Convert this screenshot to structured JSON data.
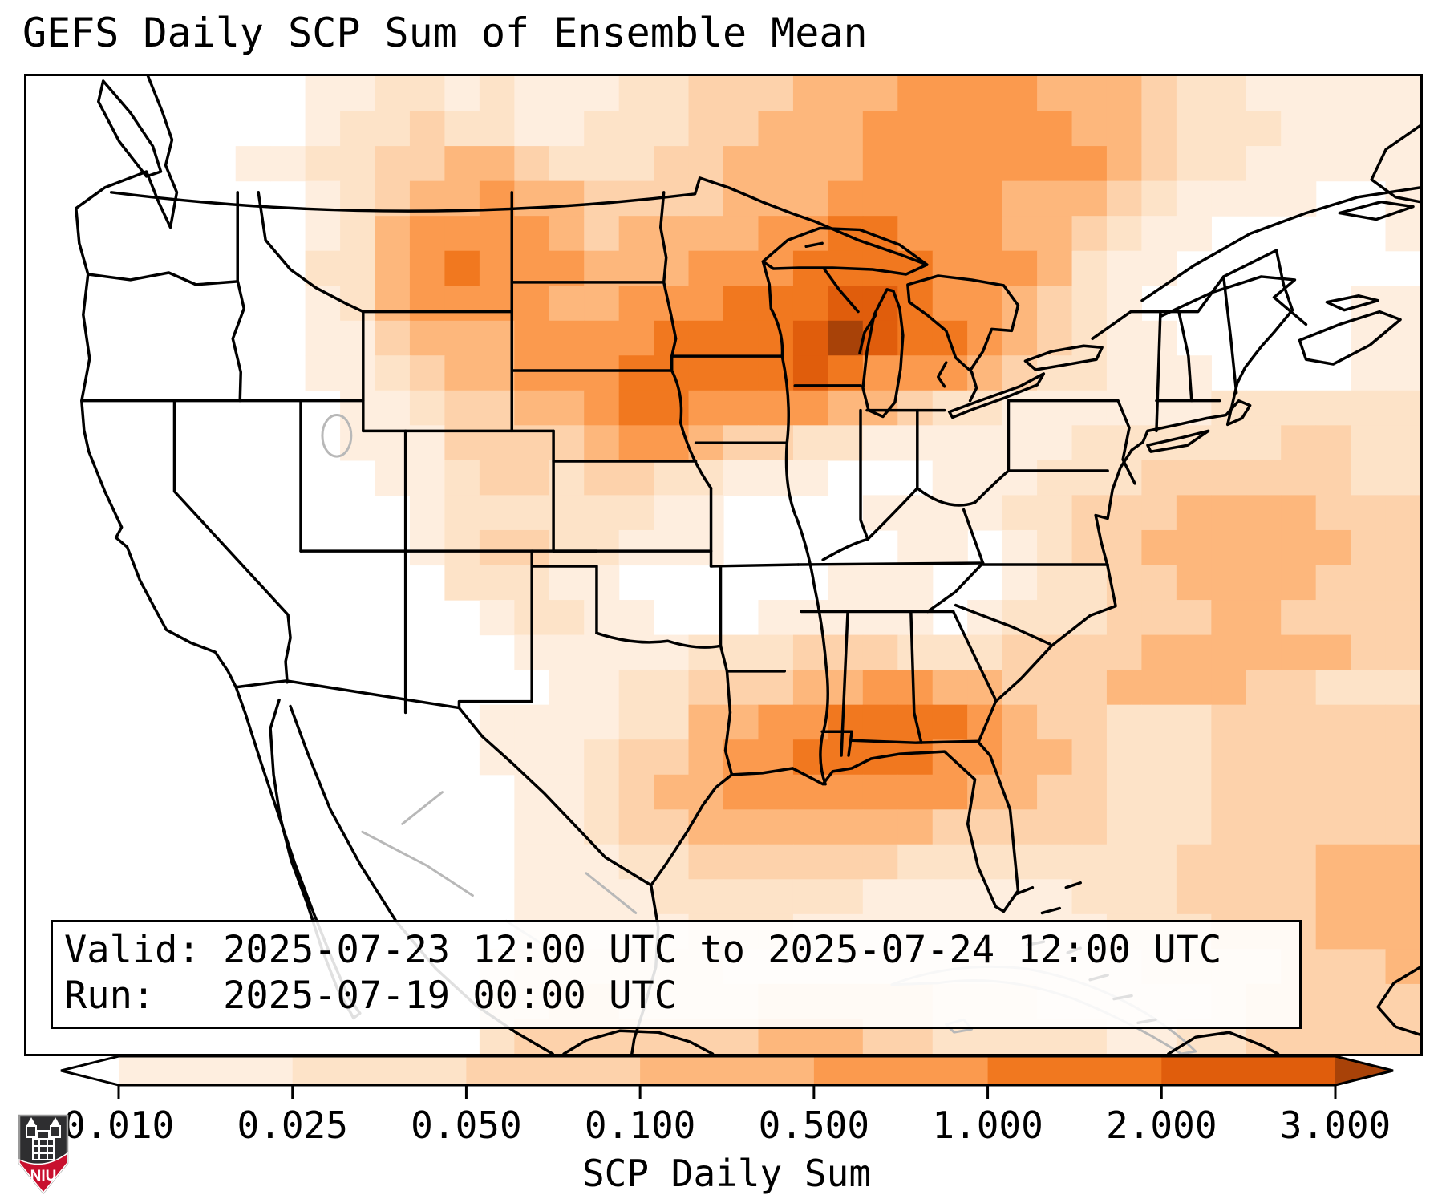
{
  "title": "GEFS Daily SCP Sum of Ensemble Mean",
  "info_box": {
    "valid_line": "Valid: 2025-07-23 12:00 UTC to 2025-07-24 12:00 UTC",
    "run_line": "Run:   2025-07-19 00:00 UTC"
  },
  "colorbar": {
    "label": "SCP Daily Sum",
    "tick_labels": [
      "0.010",
      "0.025",
      "0.050",
      "0.100",
      "0.500",
      "1.000",
      "2.000",
      "3.000"
    ],
    "boundaries": [
      0.01,
      0.025,
      0.05,
      0.1,
      0.5,
      1.0,
      2.0,
      3.0
    ],
    "segment_colors": [
      "#feeedf",
      "#fde3c8",
      "#fdd2ab",
      "#fdb77c",
      "#fb9a4e",
      "#f1781f",
      "#e05d0c"
    ],
    "under_color": "#ffffff",
    "over_color": "#a84208",
    "outline_color": "#000000"
  },
  "logo": {
    "text": "NIU",
    "red": "#c8102e",
    "dark": "#2e2e30"
  },
  "map": {
    "field_name": "SCP daily sum ensemble mean",
    "palette": [
      "#ffffff",
      "#feeedf",
      "#fde3c8",
      "#fdd2ab",
      "#fdb77c",
      "#fb9a4e",
      "#f1781f",
      "#e05d0c",
      "#a84208"
    ],
    "grid": {
      "cols": 40,
      "rows": 28,
      "legend": "each digit 0-8 indexes palette; 0=<0.01 white, 8=>3.0 darkest",
      "cells": [
        "0000000011221211122333444555544432211111",
        "0000000012232211222334445555554432221111",
        "0000001122334432223344445555555432211111",
        "0000000012344544333344455555444321111001",
        "0000000012455554344445566555443211000001",
        "0000000022456555444555666655542110000000",
        "0000000012455554455566677655432100000011",
        "0000000011344455556666787665432110000011",
        "0000000011234455566666765554322111000011",
        "0000000001123344566555544322111111222222",
        "0000000001113333455433221111112222223322",
        "0000000000112332332211100011122233333322",
        "0000000000012222221100001111223334444333",
        "0000000000012332211100000110123344444433",
        "0000000000002221100000011100122334444333",
        "0000000000000122110001111101222333443333",
        "0000000000000011111222333222333344444433",
        "0000000000000001122333445544333444433222",
        "0000000000000111122445566665433222333333",
        "0000000000000111233455666655443222333333",
        "0000000000000011234455555554433222333333",
        "0000000000000011233444444433333222333333",
        "0000000000000011122333333222222223333444",
        "0000000000000011112222221111112223333444",
        "0000000000000011111222111111111222333444",
        "0000000000000122222211111111111122223334",
        "0000000000000223322223333322211111233333",
        "0000000000000233333334443322222112233333"
      ]
    }
  }
}
